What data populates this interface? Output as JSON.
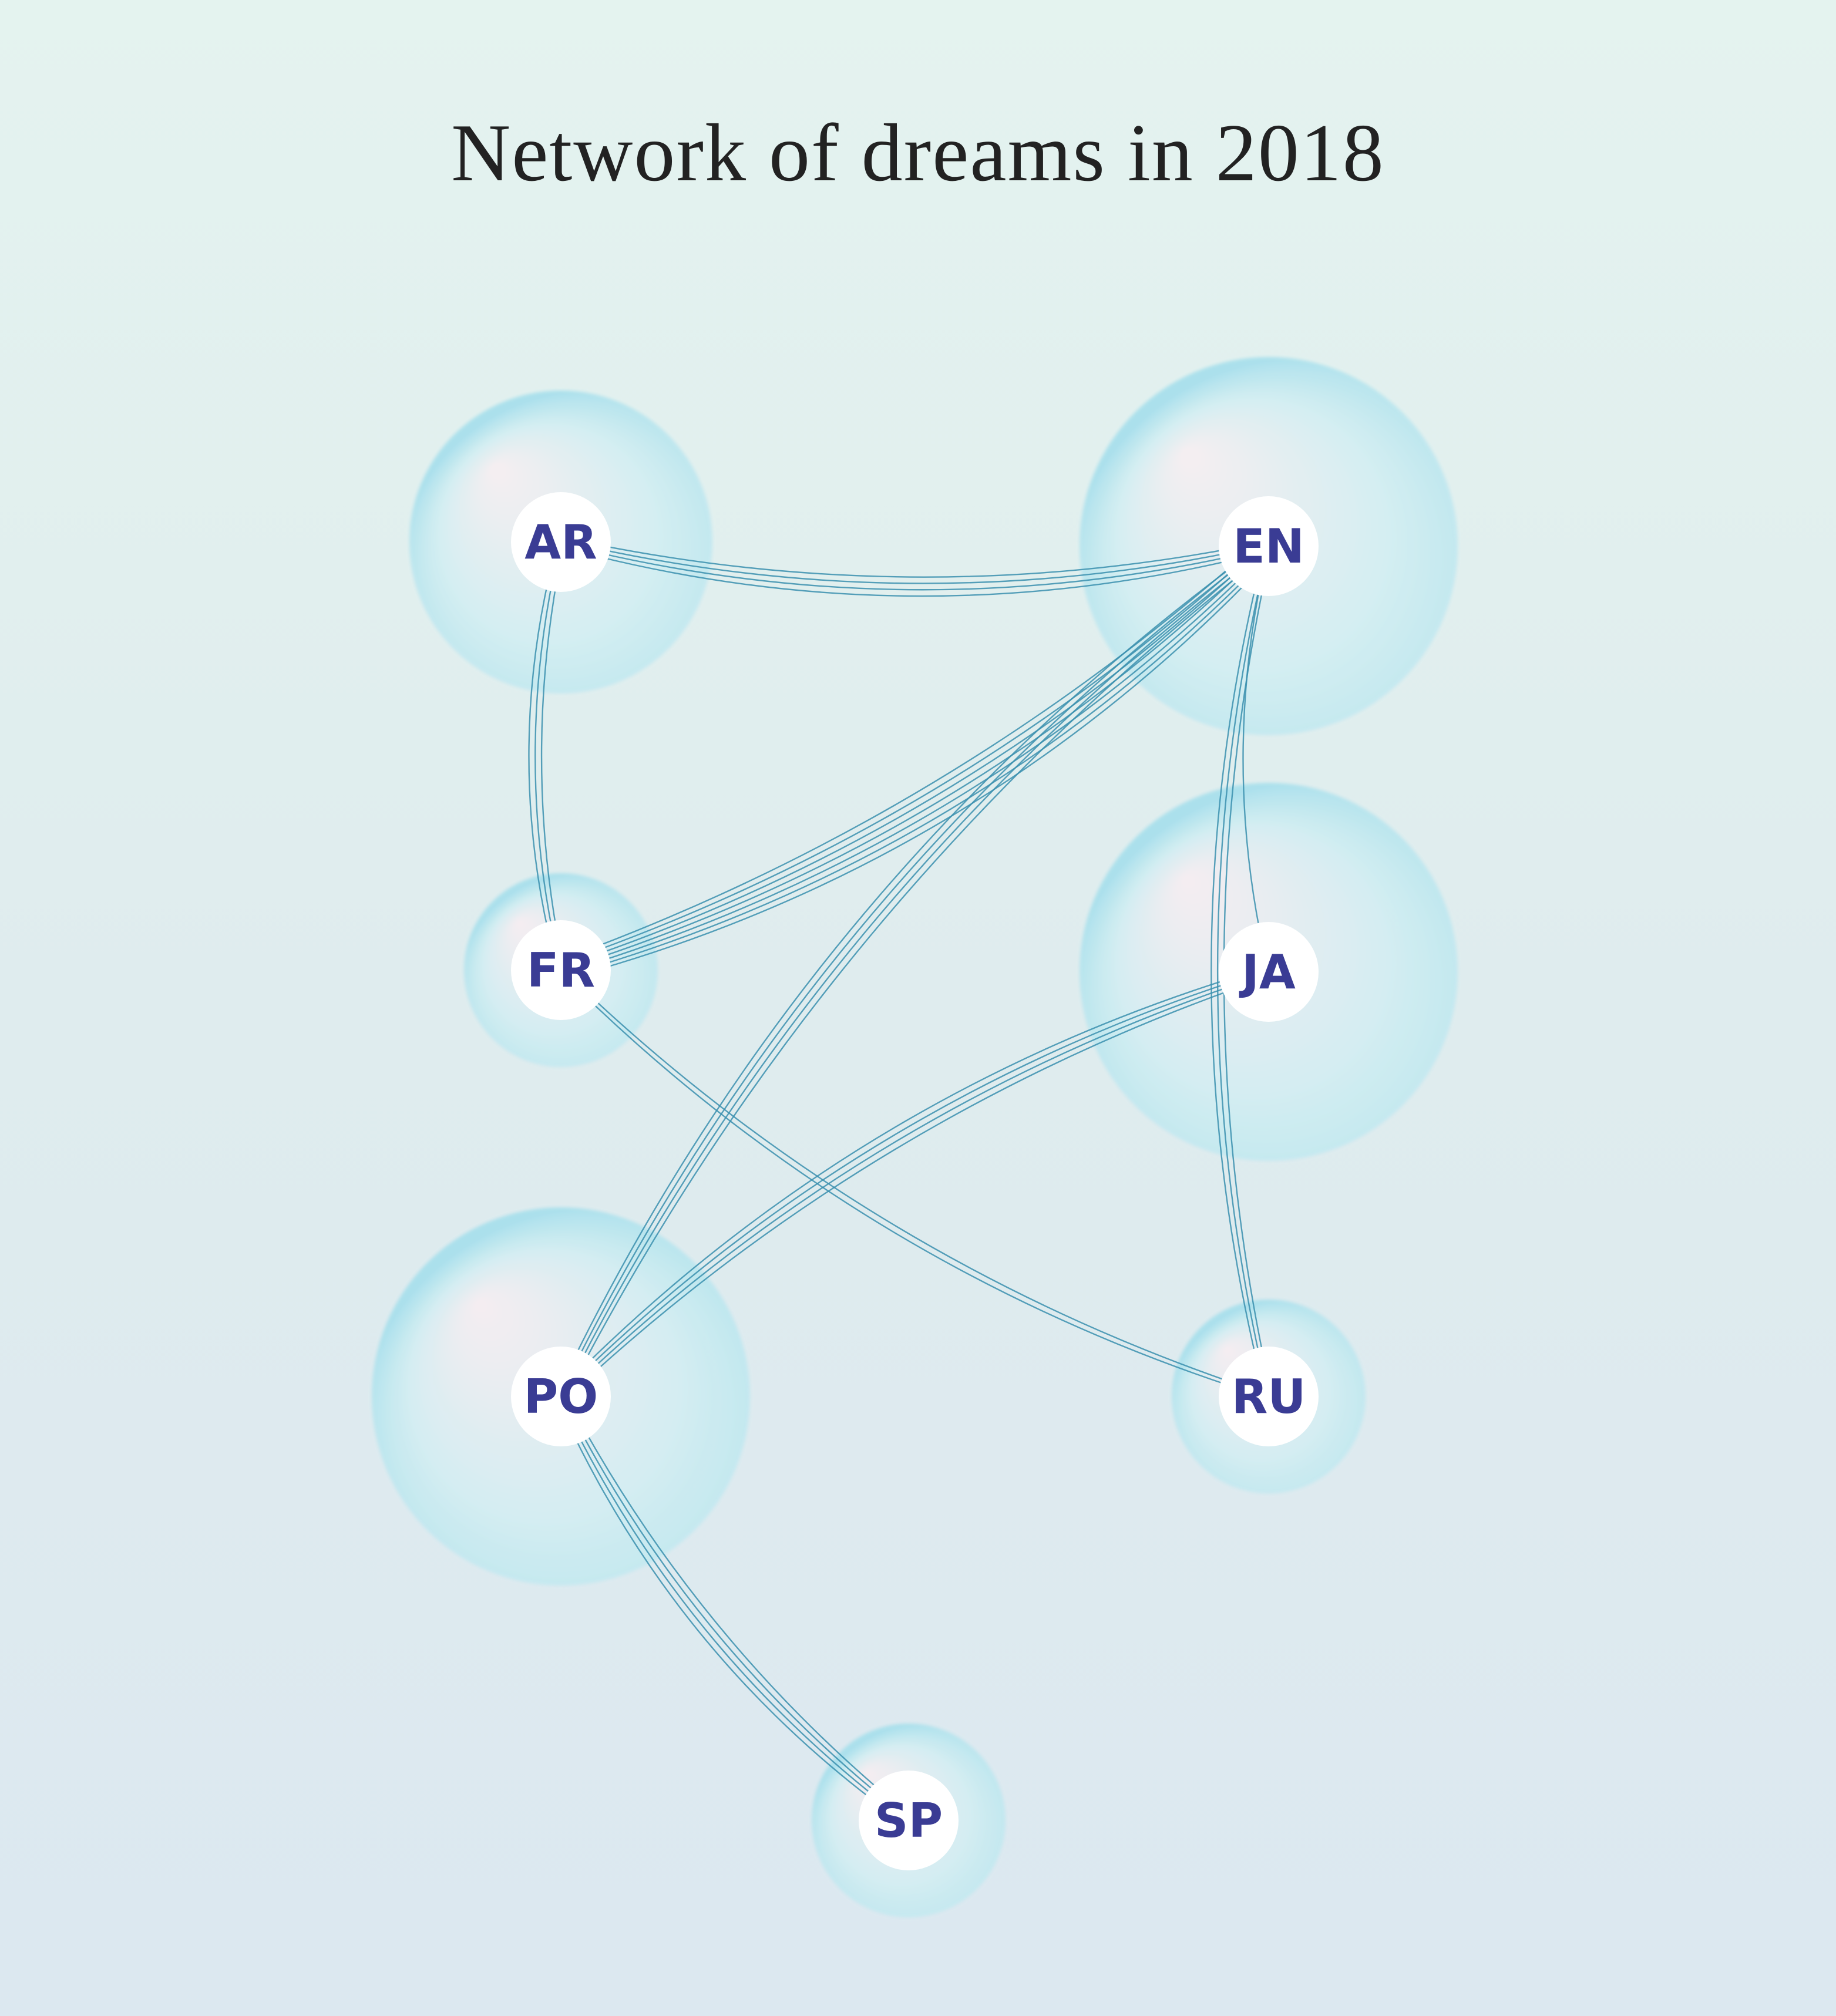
{
  "title": "Network of dreams in 2018",
  "colors": {
    "edge": "#3a8fae",
    "label": "#3a3c94",
    "node_center": "#ffffff",
    "bubble_light": "#f7eef2",
    "bubble_mid": "#d4eef3",
    "bubble_dark": "#a9e0ec"
  },
  "nodes": [
    {
      "id": "AR",
      "label": "AR"
    },
    {
      "id": "EN",
      "label": "EN"
    },
    {
      "id": "FR",
      "label": "FR"
    },
    {
      "id": "JA",
      "label": "JA"
    },
    {
      "id": "PO",
      "label": "PO"
    },
    {
      "id": "RU",
      "label": "RU"
    },
    {
      "id": "SP",
      "label": "SP"
    }
  ],
  "edges": [
    {
      "from": "AR",
      "to": "EN",
      "count": 4
    },
    {
      "from": "AR",
      "to": "FR",
      "count": 3
    },
    {
      "from": "FR",
      "to": "EN",
      "count": 7
    },
    {
      "from": "EN",
      "to": "JA",
      "count": 1
    },
    {
      "from": "EN",
      "to": "RU",
      "count": 3
    },
    {
      "from": "EN",
      "to": "PO",
      "count": 4
    },
    {
      "from": "FR",
      "to": "RU",
      "count": 2
    },
    {
      "from": "JA",
      "to": "PO",
      "count": 4
    },
    {
      "from": "PO",
      "to": "SP",
      "count": 4
    }
  ]
}
